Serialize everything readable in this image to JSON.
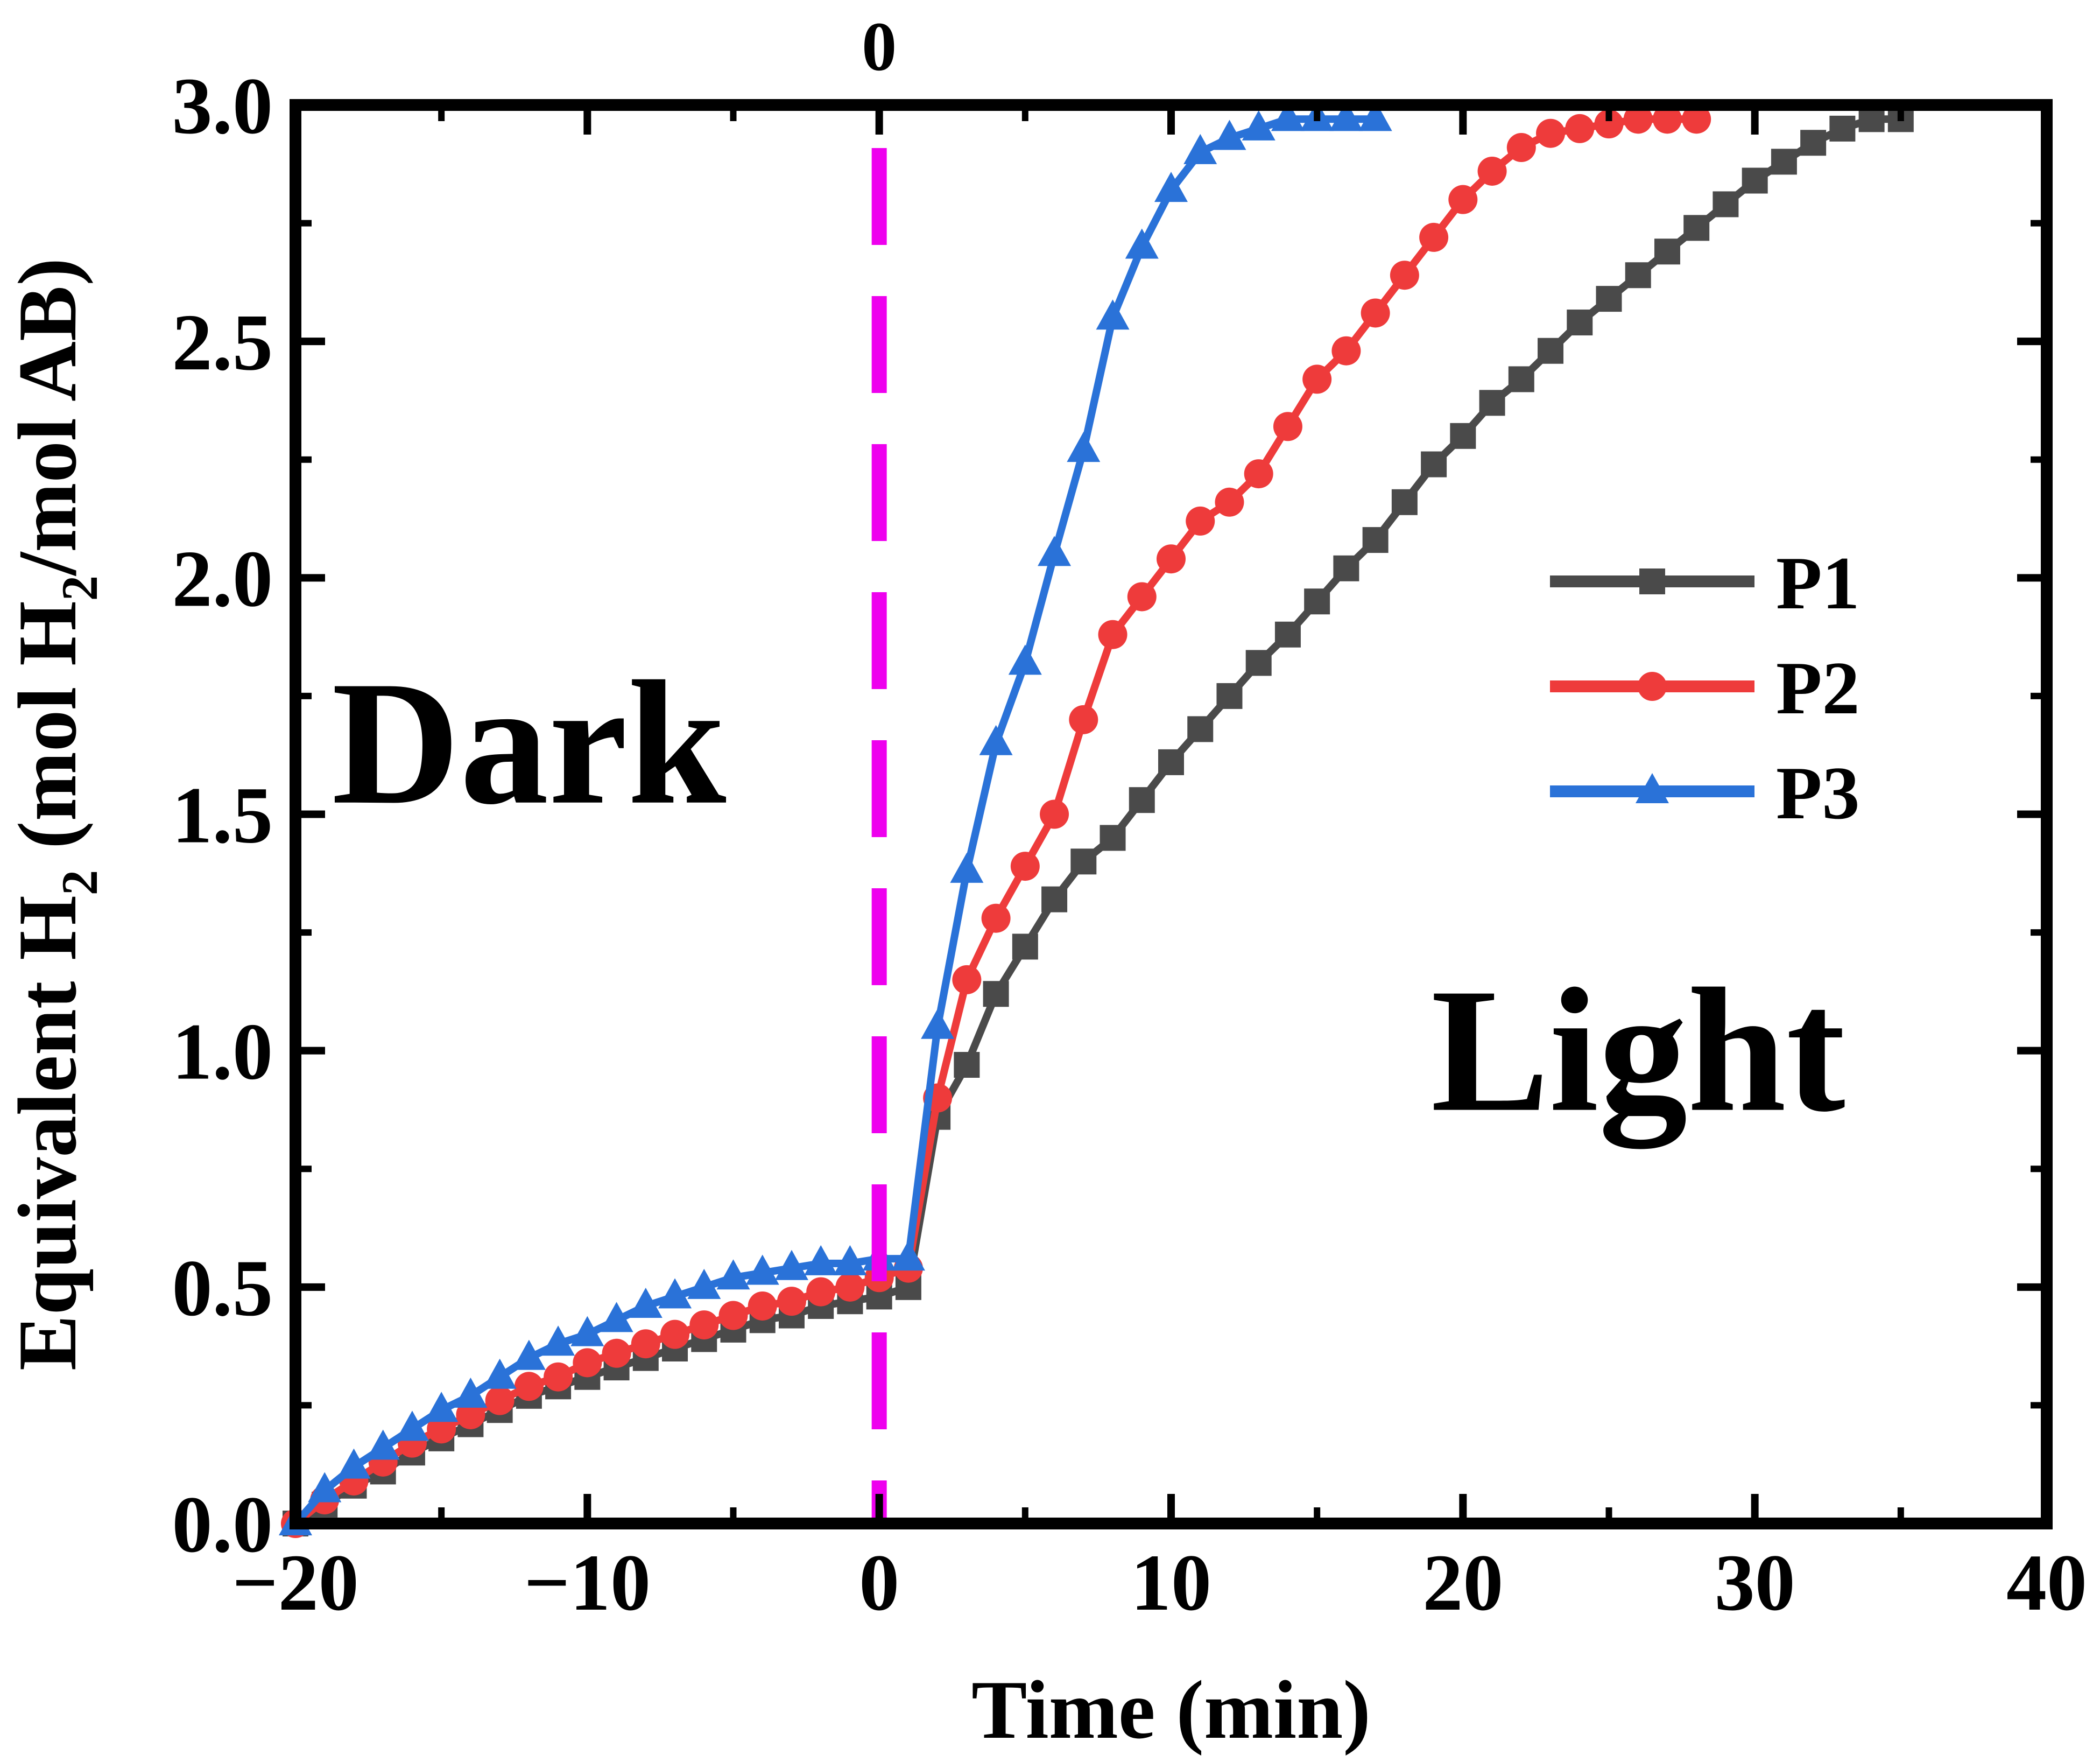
{
  "chart_data": {
    "type": "line",
    "title": "",
    "xlabel": "Time (min)",
    "ylabel_parts": [
      "Equivalent H",
      "2",
      " (mol H",
      "2",
      "/mol AB)"
    ],
    "xlim": [
      -20,
      40
    ],
    "ylim": [
      0,
      3.0
    ],
    "x_ticks": [
      -20,
      -10,
      0,
      10,
      20,
      30,
      40
    ],
    "x_tick_labels": [
      "−20",
      "−10",
      "0",
      "10",
      "20",
      "30",
      "40"
    ],
    "y_ticks": [
      0,
      0.5,
      1.0,
      1.5,
      2.0,
      2.5,
      3.0
    ],
    "y_tick_labels": [
      "0.0",
      "0.5",
      "1.0",
      "1.5",
      "2.0",
      "2.5",
      "3.0"
    ],
    "grid": false,
    "legend_position": "center-right",
    "annotations": [
      {
        "text": "Dark",
        "x": -12,
        "y": 1.65
      },
      {
        "text": "Light",
        "x": 26,
        "y": 1.0
      }
    ],
    "vline": {
      "x": 0,
      "label": "0",
      "color": "#ee00ee"
    },
    "series": [
      {
        "name": "P1",
        "color": "#4a4a4a",
        "marker": "square",
        "x": [
          -20,
          -19,
          -18,
          -17,
          -16,
          -15,
          -14,
          -13,
          -12,
          -11,
          -10,
          -9,
          -8,
          -7,
          -6,
          -5,
          -4,
          -3,
          -2,
          -1,
          0,
          1,
          2,
          3,
          4,
          5,
          6,
          7,
          8,
          9,
          10,
          11,
          12,
          13,
          14,
          15,
          16,
          17,
          18,
          19,
          20,
          21,
          22,
          23,
          24,
          25,
          26,
          27,
          28,
          29,
          30,
          31,
          32,
          33,
          34,
          35
        ],
        "y": [
          0.0,
          0.04,
          0.08,
          0.11,
          0.15,
          0.18,
          0.21,
          0.24,
          0.27,
          0.29,
          0.31,
          0.33,
          0.35,
          0.37,
          0.39,
          0.41,
          0.43,
          0.44,
          0.46,
          0.47,
          0.48,
          0.5,
          0.86,
          0.97,
          1.12,
          1.22,
          1.32,
          1.4,
          1.45,
          1.53,
          1.61,
          1.68,
          1.75,
          1.82,
          1.88,
          1.95,
          2.02,
          2.08,
          2.16,
          2.24,
          2.3,
          2.37,
          2.42,
          2.48,
          2.54,
          2.59,
          2.64,
          2.69,
          2.74,
          2.79,
          2.84,
          2.88,
          2.92,
          2.95,
          2.97,
          2.97
        ]
      },
      {
        "name": "P2",
        "color": "#ee3b3b",
        "marker": "circle",
        "x": [
          -20,
          -19,
          -18,
          -17,
          -16,
          -15,
          -14,
          -13,
          -12,
          -11,
          -10,
          -9,
          -8,
          -7,
          -6,
          -5,
          -4,
          -3,
          -2,
          -1,
          0,
          1,
          2,
          3,
          4,
          5,
          6,
          7,
          8,
          9,
          10,
          11,
          12,
          13,
          14,
          15,
          16,
          17,
          18,
          19,
          20,
          21,
          22,
          23,
          24,
          25,
          26,
          27,
          28
        ],
        "y": [
          0.0,
          0.05,
          0.09,
          0.13,
          0.17,
          0.2,
          0.23,
          0.26,
          0.29,
          0.31,
          0.34,
          0.36,
          0.38,
          0.4,
          0.42,
          0.44,
          0.46,
          0.47,
          0.49,
          0.5,
          0.52,
          0.54,
          0.9,
          1.15,
          1.28,
          1.39,
          1.5,
          1.7,
          1.88,
          1.96,
          2.04,
          2.12,
          2.16,
          2.22,
          2.32,
          2.42,
          2.48,
          2.56,
          2.64,
          2.72,
          2.8,
          2.86,
          2.91,
          2.94,
          2.95,
          2.96,
          2.97,
          2.97,
          2.97
        ]
      },
      {
        "name": "P3",
        "color": "#2a72d8",
        "marker": "triangle",
        "x": [
          -20,
          -19,
          -18,
          -17,
          -16,
          -15,
          -14,
          -13,
          -12,
          -11,
          -10,
          -9,
          -8,
          -7,
          -6,
          -5,
          -4,
          -3,
          -2,
          -1,
          0,
          1,
          2,
          3,
          4,
          5,
          6,
          7,
          8,
          9,
          10,
          11,
          12,
          13,
          14,
          15,
          16,
          17
        ],
        "y": [
          0.0,
          0.07,
          0.12,
          0.16,
          0.2,
          0.24,
          0.27,
          0.31,
          0.35,
          0.38,
          0.4,
          0.43,
          0.46,
          0.48,
          0.5,
          0.52,
          0.53,
          0.54,
          0.55,
          0.55,
          0.56,
          0.56,
          1.05,
          1.38,
          1.65,
          1.82,
          2.05,
          2.27,
          2.55,
          2.7,
          2.82,
          2.9,
          2.93,
          2.95,
          2.97,
          2.97,
          2.97,
          2.97
        ]
      }
    ]
  }
}
